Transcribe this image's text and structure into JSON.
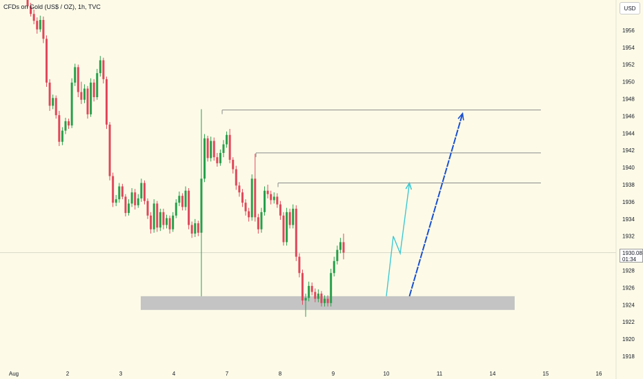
{
  "header": {
    "title": "CFDs on Gold (US$ / OZ), 1h, TVC",
    "currency": "USD"
  },
  "price_tag": {
    "price": "1930.08",
    "countdown": "01:34"
  },
  "colors": {
    "background": "#fdfbe8",
    "up_candle": "#26a04a",
    "down_candle": "#e0475a",
    "axis_text": "#131722",
    "level_line": "#8a8a8a",
    "support_zone": "#c4c4c4",
    "projection_cyan": "#3cc8d2",
    "projection_blue": "#1a4fd1",
    "crosshair_line": "#d8d8c8"
  },
  "chart_data": {
    "type": "candlestick",
    "title": "CFDs on Gold (US$ / OZ), 1h, TVC",
    "currency": "USD",
    "ylim": [
      1917,
      1959
    ],
    "y_ticks": [
      1918,
      1920,
      1922,
      1924,
      1926,
      1928,
      1930,
      1932,
      1934,
      1936,
      1938,
      1940,
      1942,
      1944,
      1946,
      1948,
      1950,
      1952,
      1954,
      1956
    ],
    "x_ticks": [
      "Aug",
      "2",
      "3",
      "4",
      "7",
      "8",
      "9",
      "10",
      "11",
      "14",
      "15",
      "16"
    ],
    "last_price": 1930.08,
    "candles_ohlc": [
      [
        1959.6,
        1959.9,
        1958.6,
        1958.8
      ],
      [
        1958.8,
        1959.2,
        1957.6,
        1957.9
      ],
      [
        1957.9,
        1958.4,
        1956.7,
        1957.1
      ],
      [
        1957.1,
        1957.5,
        1955.6,
        1956.1
      ],
      [
        1956.1,
        1957.7,
        1955.8,
        1957.2
      ],
      [
        1957.2,
        1957.6,
        1954.5,
        1955.0
      ],
      [
        1955.0,
        1955.4,
        1949.4,
        1949.9
      ],
      [
        1949.9,
        1950.3,
        1946.6,
        1947.2
      ],
      [
        1947.2,
        1948.5,
        1946.8,
        1948.1
      ],
      [
        1948.1,
        1948.4,
        1945.7,
        1946.1
      ],
      [
        1946.1,
        1946.6,
        1942.5,
        1943.0
      ],
      [
        1943.0,
        1944.7,
        1942.6,
        1944.3
      ],
      [
        1944.3,
        1945.8,
        1943.9,
        1945.4
      ],
      [
        1945.4,
        1945.7,
        1944.5,
        1944.9
      ],
      [
        1944.9,
        1950.4,
        1944.6,
        1949.9
      ],
      [
        1949.9,
        1952.1,
        1949.5,
        1951.7
      ],
      [
        1951.7,
        1952.0,
        1948.2,
        1948.8
      ],
      [
        1948.8,
        1950.0,
        1947.4,
        1947.9
      ],
      [
        1947.9,
        1949.7,
        1947.5,
        1949.2
      ],
      [
        1949.2,
        1949.5,
        1945.7,
        1946.2
      ],
      [
        1946.2,
        1950.4,
        1945.9,
        1949.9
      ],
      [
        1949.9,
        1950.3,
        1947.7,
        1948.2
      ],
      [
        1948.2,
        1951.5,
        1947.9,
        1951.0
      ],
      [
        1951.0,
        1953.0,
        1950.6,
        1952.5
      ],
      [
        1952.5,
        1952.8,
        1949.8,
        1950.3
      ],
      [
        1950.3,
        1950.6,
        1944.5,
        1945.0
      ],
      [
        1945.0,
        1945.3,
        1938.5,
        1939.0
      ],
      [
        1939.0,
        1939.4,
        1935.4,
        1935.9
      ],
      [
        1935.9,
        1936.8,
        1935.5,
        1936.3
      ],
      [
        1936.3,
        1938.2,
        1935.9,
        1937.8
      ],
      [
        1937.8,
        1938.1,
        1936.3,
        1936.6
      ],
      [
        1936.6,
        1936.9,
        1934.3,
        1934.7
      ],
      [
        1934.7,
        1936.3,
        1934.4,
        1935.8
      ],
      [
        1935.8,
        1937.6,
        1935.4,
        1937.1
      ],
      [
        1937.1,
        1937.5,
        1935.1,
        1935.6
      ],
      [
        1935.6,
        1936.9,
        1935.3,
        1936.4
      ],
      [
        1936.4,
        1938.7,
        1936.0,
        1938.2
      ],
      [
        1938.2,
        1938.5,
        1935.7,
        1936.1
      ],
      [
        1936.1,
        1936.4,
        1934.0,
        1934.4
      ],
      [
        1934.4,
        1934.8,
        1932.3,
        1932.8
      ],
      [
        1932.8,
        1936.3,
        1932.4,
        1935.8
      ],
      [
        1935.8,
        1936.1,
        1932.5,
        1933.0
      ],
      [
        1933.0,
        1935.2,
        1932.6,
        1934.8
      ],
      [
        1934.8,
        1935.2,
        1932.8,
        1933.3
      ],
      [
        1933.3,
        1934.5,
        1932.9,
        1934.1
      ],
      [
        1934.1,
        1934.4,
        1932.3,
        1932.8
      ],
      [
        1932.8,
        1934.8,
        1932.5,
        1934.4
      ],
      [
        1934.4,
        1936.3,
        1934.1,
        1935.9
      ],
      [
        1935.9,
        1937.2,
        1935.5,
        1936.7
      ],
      [
        1936.7,
        1937.0,
        1935.0,
        1935.4
      ],
      [
        1935.4,
        1937.8,
        1935.0,
        1937.3
      ],
      [
        1937.3,
        1937.6,
        1932.8,
        1933.3
      ],
      [
        1933.3,
        1933.7,
        1931.8,
        1932.3
      ],
      [
        1932.3,
        1934.0,
        1931.9,
        1933.5
      ],
      [
        1933.5,
        1933.8,
        1932.0,
        1932.4
      ],
      [
        1932.4,
        1946.8,
        1925.0,
        1938.7
      ],
      [
        1938.7,
        1943.9,
        1938.3,
        1943.4
      ],
      [
        1943.4,
        1943.7,
        1940.7,
        1941.1
      ],
      [
        1941.1,
        1943.6,
        1940.7,
        1943.1
      ],
      [
        1943.1,
        1943.5,
        1940.8,
        1941.2
      ],
      [
        1941.2,
        1941.7,
        1940.1,
        1940.5
      ],
      [
        1940.5,
        1942.1,
        1940.2,
        1941.7
      ],
      [
        1941.7,
        1943.2,
        1941.2,
        1942.7
      ],
      [
        1942.7,
        1944.2,
        1942.3,
        1943.8
      ],
      [
        1943.8,
        1944.5,
        1940.5,
        1940.9
      ],
      [
        1940.9,
        1941.2,
        1939.3,
        1939.8
      ],
      [
        1939.8,
        1940.2,
        1937.4,
        1937.9
      ],
      [
        1937.9,
        1938.3,
        1936.6,
        1937.1
      ],
      [
        1937.1,
        1937.5,
        1935.4,
        1935.9
      ],
      [
        1935.9,
        1936.3,
        1934.4,
        1934.9
      ],
      [
        1934.9,
        1935.3,
        1933.7,
        1934.2
      ],
      [
        1934.2,
        1939.2,
        1933.8,
        1938.7
      ],
      [
        1938.7,
        1941.6,
        1933.7,
        1934.2
      ],
      [
        1934.2,
        1934.6,
        1932.3,
        1932.8
      ],
      [
        1932.8,
        1935.3,
        1932.4,
        1934.8
      ],
      [
        1934.8,
        1937.8,
        1934.4,
        1937.3
      ],
      [
        1937.3,
        1938.0,
        1936.4,
        1936.9
      ],
      [
        1936.9,
        1937.3,
        1935.7,
        1936.2
      ],
      [
        1936.2,
        1937.1,
        1935.8,
        1936.6
      ],
      [
        1936.6,
        1937.0,
        1935.3,
        1935.7
      ],
      [
        1935.7,
        1936.1,
        1933.9,
        1934.4
      ],
      [
        1934.4,
        1934.8,
        1930.9,
        1931.3
      ],
      [
        1931.3,
        1935.3,
        1930.9,
        1934.8
      ],
      [
        1934.8,
        1935.2,
        1932.9,
        1933.3
      ],
      [
        1933.3,
        1935.7,
        1932.9,
        1935.2
      ],
      [
        1935.2,
        1935.6,
        1929.1,
        1929.6
      ],
      [
        1929.6,
        1930.0,
        1927.2,
        1927.7
      ],
      [
        1927.7,
        1928.1,
        1924.0,
        1924.5
      ],
      [
        1924.5,
        1925.3,
        1922.6,
        1924.8
      ],
      [
        1924.8,
        1926.7,
        1924.4,
        1926.2
      ],
      [
        1926.2,
        1926.6,
        1925.1,
        1925.5
      ],
      [
        1925.5,
        1925.9,
        1924.3,
        1924.7
      ],
      [
        1924.7,
        1925.8,
        1924.3,
        1925.3
      ],
      [
        1925.3,
        1925.6,
        1923.8,
        1924.2
      ],
      [
        1924.2,
        1925.1,
        1923.8,
        1924.7
      ],
      [
        1924.7,
        1925.1,
        1923.8,
        1924.2
      ],
      [
        1924.2,
        1928.2,
        1923.8,
        1927.7
      ],
      [
        1927.7,
        1929.6,
        1927.3,
        1929.1
      ],
      [
        1929.1,
        1930.9,
        1928.7,
        1930.4
      ],
      [
        1930.4,
        1931.8,
        1930.0,
        1931.3
      ],
      [
        1931.3,
        1932.3,
        1929.3,
        1930.08
      ]
    ],
    "levels": [
      1946.7,
      1941.7,
      1938.2
    ],
    "support_zone": [
      1923.4,
      1925.0
    ],
    "projection_paths": [
      {
        "color": "cyan",
        "points": [
          [
            "9 23:00",
            1925.0
          ],
          [
            "10 03:00",
            1932.0
          ],
          [
            "10 06:00",
            1930.0
          ],
          [
            "10 10:00",
            1938.2
          ]
        ]
      },
      {
        "color": "blue",
        "points": [
          [
            "10 10:00",
            1925.0
          ],
          [
            "11 10:00",
            1946.3
          ]
        ]
      }
    ]
  }
}
